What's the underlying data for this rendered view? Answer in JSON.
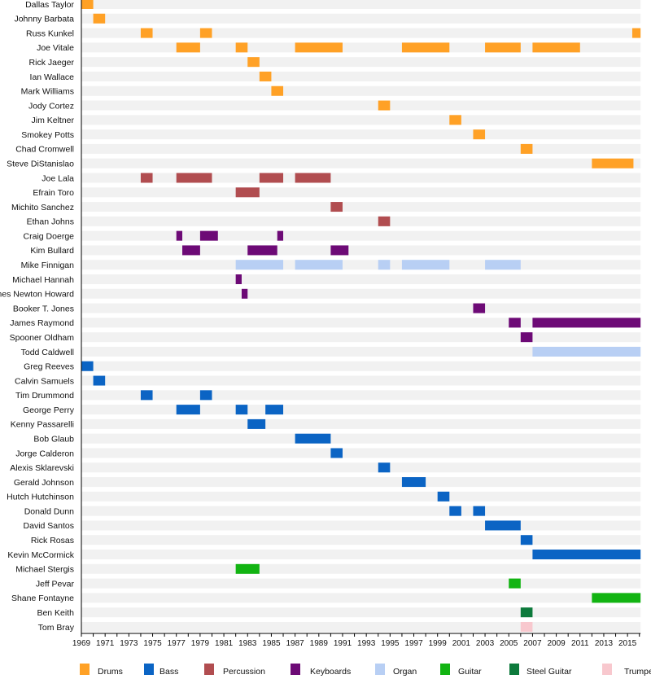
{
  "chart_data": {
    "type": "timeline",
    "xlim": [
      1969,
      2016.1
    ],
    "x_tick_labels": [
      "1969",
      "1971",
      "1973",
      "1975",
      "1977",
      "1979",
      "1981",
      "1983",
      "1985",
      "1987",
      "1989",
      "1991",
      "1993",
      "1995",
      "1997",
      "1999",
      "2001",
      "2003",
      "2005",
      "2007",
      "2009",
      "2011",
      "2013",
      "2015"
    ],
    "roles": [
      {
        "name": "Drums",
        "color": "#ffa126"
      },
      {
        "name": "Bass",
        "color": "#0b64c4"
      },
      {
        "name": "Percussion",
        "color": "#b14d50"
      },
      {
        "name": "Keyboards",
        "color": "#6d0a76"
      },
      {
        "name": "Organ",
        "color": "#b8cff4"
      },
      {
        "name": "Guitar",
        "color": "#12b412"
      },
      {
        "name": "Steel Guitar",
        "color": "#0d7a3c"
      },
      {
        "name": "Trumpet",
        "color": "#f8c8ce"
      }
    ],
    "legend_placement": "bottom",
    "members": [
      {
        "name": "Dallas Taylor",
        "spans": [
          [
            "Drums",
            1969,
            1970
          ]
        ]
      },
      {
        "name": "Johnny Barbata",
        "spans": [
          [
            "Drums",
            1970,
            1971
          ]
        ]
      },
      {
        "name": "Russ Kunkel",
        "spans": [
          [
            "Drums",
            1974,
            1975
          ],
          [
            "Drums",
            1979,
            1980
          ],
          [
            "Drums",
            2015.4,
            2016.1
          ]
        ]
      },
      {
        "name": "Joe Vitale",
        "spans": [
          [
            "Drums",
            1977,
            1979
          ],
          [
            "Drums",
            1982,
            1983
          ],
          [
            "Drums",
            1987,
            1991
          ],
          [
            "Drums",
            1996,
            2000
          ],
          [
            "Drums",
            2003,
            2006
          ],
          [
            "Drums",
            2007,
            2011
          ]
        ]
      },
      {
        "name": "Rick Jaeger",
        "spans": [
          [
            "Drums",
            1983,
            1984
          ]
        ]
      },
      {
        "name": "Ian Wallace",
        "spans": [
          [
            "Drums",
            1984,
            1985
          ]
        ]
      },
      {
        "name": "Mark Williams",
        "spans": [
          [
            "Drums",
            1985,
            1986
          ]
        ]
      },
      {
        "name": "Jody Cortez",
        "spans": [
          [
            "Drums",
            1994,
            1995
          ]
        ]
      },
      {
        "name": "Jim Keltner",
        "spans": [
          [
            "Drums",
            2000,
            2001
          ]
        ]
      },
      {
        "name": "Smokey Potts",
        "spans": [
          [
            "Drums",
            2002,
            2003
          ]
        ]
      },
      {
        "name": "Chad Cromwell",
        "spans": [
          [
            "Drums",
            2006,
            2007
          ]
        ]
      },
      {
        "name": "Steve DiStanislao",
        "spans": [
          [
            "Drums",
            2012,
            2015.5
          ]
        ]
      },
      {
        "name": "Joe Lala",
        "spans": [
          [
            "Percussion",
            1974,
            1975
          ],
          [
            "Percussion",
            1977,
            1980
          ],
          [
            "Percussion",
            1984,
            1986
          ],
          [
            "Percussion",
            1987,
            1990
          ]
        ]
      },
      {
        "name": "Efrain Toro",
        "spans": [
          [
            "Percussion",
            1982,
            1984
          ]
        ]
      },
      {
        "name": "Michito Sanchez",
        "spans": [
          [
            "Percussion",
            1990,
            1991
          ]
        ]
      },
      {
        "name": "Ethan Johns",
        "spans": [
          [
            "Percussion",
            1994,
            1995
          ]
        ]
      },
      {
        "name": "Craig Doerge",
        "spans": [
          [
            "Keyboards",
            1977,
            1977.5
          ],
          [
            "Keyboards",
            1979,
            1980.5
          ],
          [
            "Keyboards",
            1985.5,
            1986
          ]
        ]
      },
      {
        "name": "Kim Bullard",
        "spans": [
          [
            "Keyboards",
            1977.5,
            1979
          ],
          [
            "Keyboards",
            1983,
            1985.5
          ],
          [
            "Keyboards",
            1990,
            1991.5
          ]
        ]
      },
      {
        "name": "Mike Finnigan",
        "spans": [
          [
            "Organ",
            1982,
            1986
          ],
          [
            "Organ",
            1987,
            1991
          ],
          [
            "Organ",
            1994,
            1995
          ],
          [
            "Organ",
            1996,
            2000
          ],
          [
            "Organ",
            2003,
            2006
          ]
        ]
      },
      {
        "name": "Michael Hannah",
        "spans": [
          [
            "Keyboards",
            1982,
            1982.5
          ]
        ]
      },
      {
        "name": "James Newton Howard",
        "spans": [
          [
            "Keyboards",
            1982.5,
            1983
          ]
        ]
      },
      {
        "name": "Booker T. Jones",
        "spans": [
          [
            "Keyboards",
            2002,
            2003
          ]
        ]
      },
      {
        "name": "James Raymond",
        "spans": [
          [
            "Keyboards",
            2005,
            2006
          ],
          [
            "Keyboards",
            2007,
            2016.1
          ]
        ]
      },
      {
        "name": "Spooner Oldham",
        "spans": [
          [
            "Keyboards",
            2006,
            2007
          ]
        ]
      },
      {
        "name": "Todd Caldwell",
        "spans": [
          [
            "Organ",
            2007,
            2016.1
          ]
        ]
      },
      {
        "name": "Greg Reeves",
        "spans": [
          [
            "Bass",
            1969,
            1970
          ]
        ]
      },
      {
        "name": "Calvin Samuels",
        "spans": [
          [
            "Bass",
            1970,
            1971
          ]
        ]
      },
      {
        "name": "Tim Drummond",
        "spans": [
          [
            "Bass",
            1974,
            1975
          ],
          [
            "Bass",
            1979,
            1980
          ]
        ]
      },
      {
        "name": "George Perry",
        "spans": [
          [
            "Bass",
            1977,
            1979
          ],
          [
            "Bass",
            1982,
            1983
          ],
          [
            "Bass",
            1984.5,
            1986
          ]
        ]
      },
      {
        "name": "Kenny Passarelli",
        "spans": [
          [
            "Bass",
            1983,
            1984.5
          ]
        ]
      },
      {
        "name": "Bob Glaub",
        "spans": [
          [
            "Bass",
            1987,
            1990
          ]
        ]
      },
      {
        "name": "Jorge Calderon",
        "spans": [
          [
            "Bass",
            1990,
            1991
          ]
        ]
      },
      {
        "name": "Alexis Sklarevski",
        "spans": [
          [
            "Bass",
            1994,
            1995
          ]
        ]
      },
      {
        "name": "Gerald Johnson",
        "spans": [
          [
            "Bass",
            1996,
            1998
          ]
        ]
      },
      {
        "name": "Hutch Hutchinson",
        "spans": [
          [
            "Bass",
            1999,
            2000
          ]
        ]
      },
      {
        "name": "Donald Dunn",
        "spans": [
          [
            "Bass",
            2000,
            2001
          ],
          [
            "Bass",
            2002,
            2003
          ]
        ]
      },
      {
        "name": "David Santos",
        "spans": [
          [
            "Bass",
            2003,
            2006
          ]
        ]
      },
      {
        "name": "Rick Rosas",
        "spans": [
          [
            "Bass",
            2006,
            2007
          ]
        ]
      },
      {
        "name": "Kevin McCormick",
        "spans": [
          [
            "Bass",
            2007,
            2016.1
          ]
        ]
      },
      {
        "name": "Michael Stergis",
        "spans": [
          [
            "Guitar",
            1982,
            1984
          ]
        ]
      },
      {
        "name": "Jeff Pevar",
        "spans": [
          [
            "Guitar",
            2005,
            2006
          ]
        ]
      },
      {
        "name": "Shane Fontayne",
        "spans": [
          [
            "Guitar",
            2012,
            2016.1
          ]
        ]
      },
      {
        "name": "Ben Keith",
        "spans": [
          [
            "Steel Guitar",
            2006,
            2007
          ]
        ]
      },
      {
        "name": "Tom Bray",
        "spans": [
          [
            "Trumpet",
            2006,
            2007
          ]
        ]
      }
    ]
  }
}
